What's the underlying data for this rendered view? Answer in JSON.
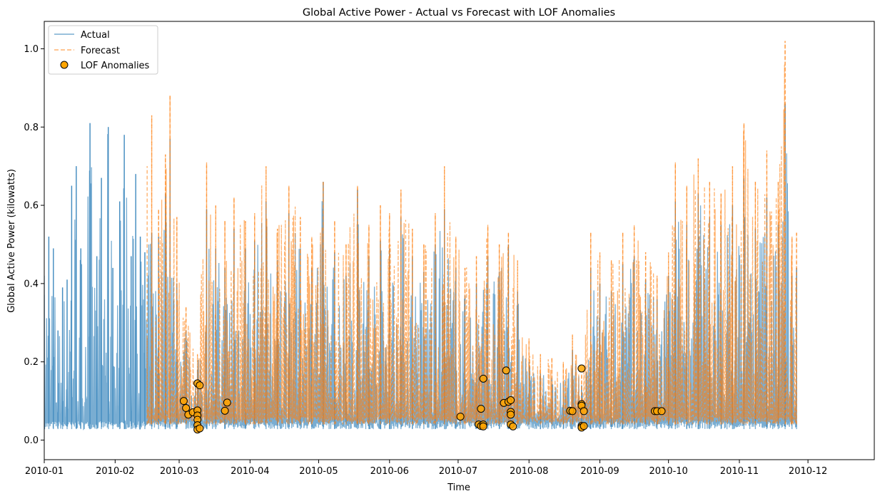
{
  "chart_data": {
    "type": "line",
    "title": "Global Active Power - Actual vs Forecast with LOF Anomalies",
    "xlabel": "Time",
    "ylabel": "Global Active Power (kilowatts)",
    "xlim": [
      "2010-01-01",
      "2010-12-30"
    ],
    "ylim": [
      -0.05,
      1.07
    ],
    "x_ticks": [
      "2010-01",
      "2010-02",
      "2010-03",
      "2010-04",
      "2010-05",
      "2010-06",
      "2010-07",
      "2010-08",
      "2010-09",
      "2010-10",
      "2010-11",
      "2010-12"
    ],
    "y_ticks": [
      0.0,
      0.2,
      0.4,
      0.6,
      0.8,
      1.0
    ],
    "y_tick_labels": [
      "0.0",
      "0.2",
      "0.4",
      "0.6",
      "0.8",
      "1.0"
    ],
    "grid": false,
    "legend_position": "top-left",
    "series": [
      {
        "name": "Actual",
        "style": "solid",
        "color": "#1f77b4",
        "alpha": 0.6,
        "points": [
          [
            "2010-01-01",
            0.42
          ],
          [
            "2010-01-03",
            0.52
          ],
          [
            "2010-01-05",
            0.49
          ],
          [
            "2010-01-07",
            0.28
          ],
          [
            "2010-01-09",
            0.39
          ],
          [
            "2010-01-11",
            0.41
          ],
          [
            "2010-01-13",
            0.65
          ],
          [
            "2010-01-15",
            0.7
          ],
          [
            "2010-01-17",
            0.49
          ],
          [
            "2010-01-21",
            0.81
          ],
          [
            "2010-01-24",
            0.47
          ],
          [
            "2010-01-26",
            0.67
          ],
          [
            "2010-01-29",
            0.8
          ],
          [
            "2010-01-31",
            0.44
          ],
          [
            "2010-02-03",
            0.61
          ],
          [
            "2010-02-05",
            0.78
          ],
          [
            "2010-02-08",
            0.47
          ],
          [
            "2010-02-10",
            0.68
          ],
          [
            "2010-02-12",
            0.52
          ],
          [
            "2010-02-14",
            0.48
          ],
          [
            "2010-02-17",
            0.53
          ],
          [
            "2010-02-20",
            0.52
          ],
          [
            "2010-02-23",
            0.63
          ],
          [
            "2010-02-25",
            0.77
          ],
          [
            "2010-02-28",
            0.4
          ],
          [
            "2010-03-04",
            0.28
          ],
          [
            "2010-03-09",
            0.18
          ],
          [
            "2010-03-13",
            0.59
          ],
          [
            "2010-03-17",
            0.49
          ],
          [
            "2010-03-21",
            0.44
          ],
          [
            "2010-03-25",
            0.54
          ],
          [
            "2010-03-30",
            0.49
          ],
          [
            "2010-04-03",
            0.51
          ],
          [
            "2010-04-08",
            0.61
          ],
          [
            "2010-04-13",
            0.46
          ],
          [
            "2010-04-18",
            0.58
          ],
          [
            "2010-04-23",
            0.49
          ],
          [
            "2010-04-28",
            0.44
          ],
          [
            "2010-05-03",
            0.66
          ],
          [
            "2010-05-08",
            0.48
          ],
          [
            "2010-05-13",
            0.42
          ],
          [
            "2010-05-18",
            0.64
          ],
          [
            "2010-05-23",
            0.47
          ],
          [
            "2010-05-28",
            0.51
          ],
          [
            "2010-06-01",
            0.49
          ],
          [
            "2010-06-06",
            0.57
          ],
          [
            "2010-06-11",
            0.47
          ],
          [
            "2010-06-16",
            0.43
          ],
          [
            "2010-06-21",
            0.5
          ],
          [
            "2010-06-25",
            0.59
          ],
          [
            "2010-06-30",
            0.44
          ],
          [
            "2010-07-04",
            0.37
          ],
          [
            "2010-07-09",
            0.4
          ],
          [
            "2010-07-14",
            0.47
          ],
          [
            "2010-07-19",
            0.43
          ],
          [
            "2010-07-23",
            0.5
          ],
          [
            "2010-07-27",
            0.38
          ],
          [
            "2010-08-01",
            0.2
          ],
          [
            "2010-08-06",
            0.17
          ],
          [
            "2010-08-11",
            0.16
          ],
          [
            "2010-08-16",
            0.15
          ],
          [
            "2010-08-20",
            0.23
          ],
          [
            "2010-08-24",
            0.14
          ],
          [
            "2010-08-28",
            0.44
          ],
          [
            "2010-09-01",
            0.4
          ],
          [
            "2010-09-06",
            0.38
          ],
          [
            "2010-09-11",
            0.45
          ],
          [
            "2010-09-16",
            0.47
          ],
          [
            "2010-09-21",
            0.41
          ],
          [
            "2010-09-26",
            0.36
          ],
          [
            "2010-10-01",
            0.42
          ],
          [
            "2010-10-04",
            0.61
          ],
          [
            "2010-10-09",
            0.55
          ],
          [
            "2010-10-14",
            0.63
          ],
          [
            "2010-10-19",
            0.57
          ],
          [
            "2010-10-24",
            0.55
          ],
          [
            "2010-10-29",
            0.6
          ],
          [
            "2010-11-03",
            0.67
          ],
          [
            "2010-11-08",
            0.54
          ],
          [
            "2010-11-13",
            0.62
          ],
          [
            "2010-11-18",
            0.55
          ],
          [
            "2010-11-21",
            0.86
          ],
          [
            "2010-11-24",
            0.42
          ],
          [
            "2010-11-26",
            0.44
          ]
        ]
      },
      {
        "name": "Forecast",
        "style": "dashed",
        "color": "#ff7f0e",
        "alpha": 0.6,
        "points": [
          [
            "2010-02-15",
            0.7
          ],
          [
            "2010-02-17",
            0.83
          ],
          [
            "2010-02-20",
            0.59
          ],
          [
            "2010-02-23",
            0.73
          ],
          [
            "2010-02-25",
            0.88
          ],
          [
            "2010-02-28",
            0.57
          ],
          [
            "2010-03-04",
            0.34
          ],
          [
            "2010-03-09",
            0.22
          ],
          [
            "2010-03-13",
            0.71
          ],
          [
            "2010-03-17",
            0.6
          ],
          [
            "2010-03-21",
            0.56
          ],
          [
            "2010-03-25",
            0.62
          ],
          [
            "2010-03-30",
            0.56
          ],
          [
            "2010-04-03",
            0.58
          ],
          [
            "2010-04-08",
            0.7
          ],
          [
            "2010-04-13",
            0.54
          ],
          [
            "2010-04-18",
            0.65
          ],
          [
            "2010-04-23",
            0.57
          ],
          [
            "2010-04-28",
            0.52
          ],
          [
            "2010-05-03",
            0.66
          ],
          [
            "2010-05-08",
            0.56
          ],
          [
            "2010-05-13",
            0.5
          ],
          [
            "2010-05-18",
            0.65
          ],
          [
            "2010-05-23",
            0.55
          ],
          [
            "2010-05-28",
            0.6
          ],
          [
            "2010-06-01",
            0.58
          ],
          [
            "2010-06-06",
            0.64
          ],
          [
            "2010-06-11",
            0.54
          ],
          [
            "2010-06-16",
            0.5
          ],
          [
            "2010-06-21",
            0.58
          ],
          [
            "2010-06-25",
            0.7
          ],
          [
            "2010-06-30",
            0.52
          ],
          [
            "2010-07-04",
            0.44
          ],
          [
            "2010-07-09",
            0.47
          ],
          [
            "2010-07-14",
            0.55
          ],
          [
            "2010-07-19",
            0.5
          ],
          [
            "2010-07-23",
            0.53
          ],
          [
            "2010-07-27",
            0.46
          ],
          [
            "2010-08-01",
            0.26
          ],
          [
            "2010-08-06",
            0.22
          ],
          [
            "2010-08-11",
            0.21
          ],
          [
            "2010-08-16",
            0.2
          ],
          [
            "2010-08-20",
            0.27
          ],
          [
            "2010-08-24",
            0.17
          ],
          [
            "2010-08-28",
            0.53
          ],
          [
            "2010-09-01",
            0.48
          ],
          [
            "2010-09-06",
            0.46
          ],
          [
            "2010-09-11",
            0.53
          ],
          [
            "2010-09-16",
            0.55
          ],
          [
            "2010-09-21",
            0.48
          ],
          [
            "2010-09-26",
            0.42
          ],
          [
            "2010-10-01",
            0.48
          ],
          [
            "2010-10-04",
            0.71
          ],
          [
            "2010-10-09",
            0.65
          ],
          [
            "2010-10-14",
            0.72
          ],
          [
            "2010-10-19",
            0.66
          ],
          [
            "2010-10-24",
            0.63
          ],
          [
            "2010-10-29",
            0.7
          ],
          [
            "2010-11-03",
            0.81
          ],
          [
            "2010-11-08",
            0.66
          ],
          [
            "2010-11-13",
            0.74
          ],
          [
            "2010-11-18",
            0.66
          ],
          [
            "2010-11-21",
            1.02
          ],
          [
            "2010-11-24",
            0.52
          ],
          [
            "2010-11-26",
            0.53
          ]
        ]
      },
      {
        "name": "LOF Anomalies",
        "type": "scatter",
        "color": "#ffa500",
        "edgecolor": "#000000",
        "points": [
          [
            "2010-03-03",
            0.1
          ],
          [
            "2010-03-04",
            0.082
          ],
          [
            "2010-03-05",
            0.065
          ],
          [
            "2010-03-07",
            0.071
          ],
          [
            "2010-03-09",
            0.145
          ],
          [
            "2010-03-09",
            0.076
          ],
          [
            "2010-03-09",
            0.063
          ],
          [
            "2010-03-09",
            0.052
          ],
          [
            "2010-03-09",
            0.038
          ],
          [
            "2010-03-09",
            0.027
          ],
          [
            "2010-03-10",
            0.14
          ],
          [
            "2010-03-10",
            0.03
          ],
          [
            "2010-03-21",
            0.075
          ],
          [
            "2010-03-22",
            0.096
          ],
          [
            "2010-07-02",
            0.06
          ],
          [
            "2010-07-10",
            0.04
          ],
          [
            "2010-07-11",
            0.036
          ],
          [
            "2010-07-11",
            0.08
          ],
          [
            "2010-07-12",
            0.157
          ],
          [
            "2010-07-12",
            0.04
          ],
          [
            "2010-07-12",
            0.035
          ],
          [
            "2010-07-21",
            0.095
          ],
          [
            "2010-07-22",
            0.178
          ],
          [
            "2010-07-23",
            0.098
          ],
          [
            "2010-07-24",
            0.102
          ],
          [
            "2010-07-24",
            0.072
          ],
          [
            "2010-07-24",
            0.065
          ],
          [
            "2010-07-24",
            0.04
          ],
          [
            "2010-07-25",
            0.035
          ],
          [
            "2010-08-19",
            0.075
          ],
          [
            "2010-08-20",
            0.074
          ],
          [
            "2010-08-24",
            0.183
          ],
          [
            "2010-08-24",
            0.092
          ],
          [
            "2010-08-24",
            0.088
          ],
          [
            "2010-08-24",
            0.036
          ],
          [
            "2010-08-24",
            0.032
          ],
          [
            "2010-08-25",
            0.074
          ],
          [
            "2010-08-25",
            0.036
          ],
          [
            "2010-09-25",
            0.074
          ],
          [
            "2010-09-26",
            0.074
          ],
          [
            "2010-09-28",
            0.074
          ]
        ]
      }
    ]
  }
}
